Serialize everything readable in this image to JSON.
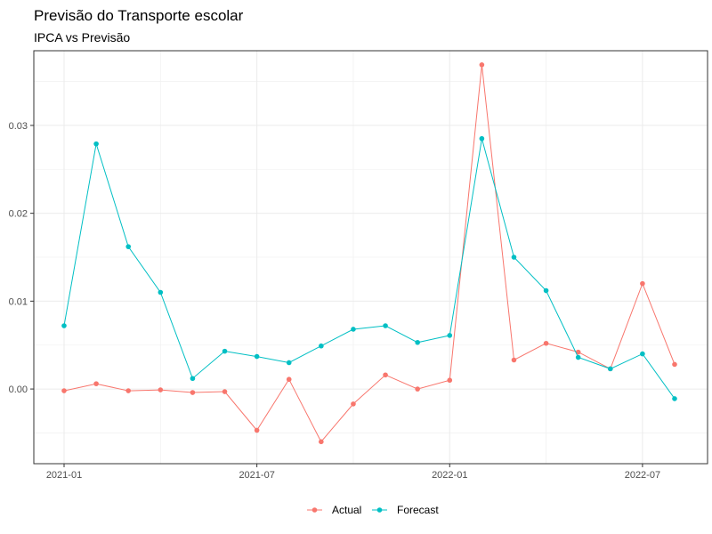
{
  "chart_data": {
    "type": "line",
    "title": "Previsão do Transporte escolar",
    "subtitle": "IPCA vs Previsão",
    "xlabel": "",
    "ylabel": "",
    "x": [
      "2021-01",
      "2021-02",
      "2021-03",
      "2021-04",
      "2021-05",
      "2021-06",
      "2021-07",
      "2021-08",
      "2021-09",
      "2021-10",
      "2021-11",
      "2021-12",
      "2022-01",
      "2022-02",
      "2022-03",
      "2022-04",
      "2022-05",
      "2022-06",
      "2022-07",
      "2022-08"
    ],
    "x_ticks": [
      "2021-01",
      "2021-07",
      "2022-01",
      "2022-07"
    ],
    "y_ticks": [
      0.0,
      0.01,
      0.02,
      0.03
    ],
    "y_tick_labels": [
      "0.00",
      "0.01",
      "0.02",
      "0.03"
    ],
    "ylim": [
      -0.0085,
      0.0385
    ],
    "grid": true,
    "legend_position": "bottom",
    "series": [
      {
        "name": "Actual",
        "color": "#F8766D",
        "values": [
          -0.0002,
          0.0006,
          -0.0002,
          -0.0001,
          -0.0004,
          -0.0003,
          -0.0047,
          0.0011,
          -0.006,
          -0.0017,
          0.0016,
          0.0,
          0.001,
          0.0369,
          0.0033,
          0.0052,
          0.0042,
          0.0023,
          0.012,
          0.0028
        ]
      },
      {
        "name": "Forecast",
        "color": "#00BFC4",
        "values": [
          0.0072,
          0.0279,
          0.0162,
          0.011,
          0.0012,
          0.0043,
          0.0037,
          0.003,
          0.0049,
          0.0068,
          0.0072,
          0.0053,
          0.0061,
          0.0285,
          0.015,
          0.0112,
          0.0036,
          0.0023,
          0.004,
          -0.0011
        ]
      }
    ]
  }
}
